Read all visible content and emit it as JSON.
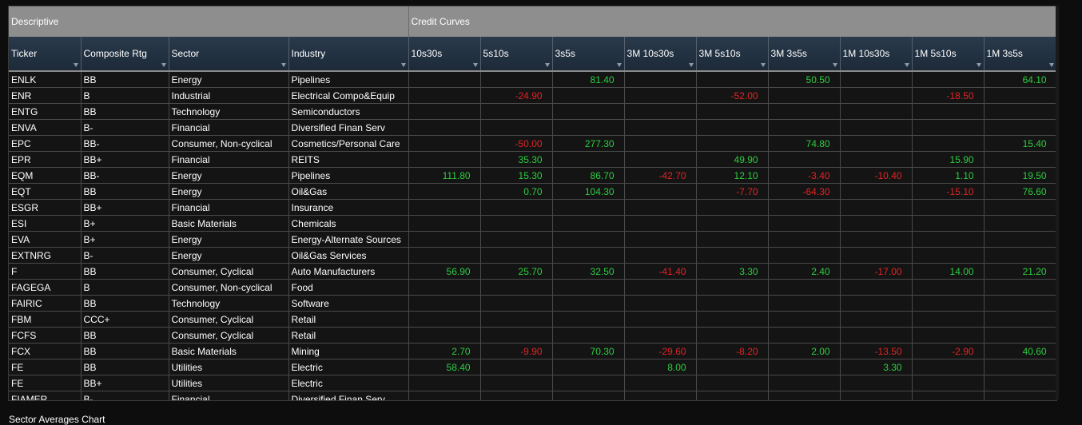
{
  "groups": {
    "descriptive": "Descriptive",
    "credit_curves": "Credit Curves"
  },
  "columns": [
    "Ticker",
    "Composite Rtg",
    "Sector",
    "Industry",
    "10s30s",
    "5s10s",
    "3s5s",
    "3M 10s30s",
    "3M 5s10s",
    "3M 3s5s",
    "1M 10s30s",
    "1M 5s10s",
    "1M 3s5s"
  ],
  "rows": [
    [
      "ENLK",
      "BB",
      "Energy",
      "Pipelines",
      "",
      "",
      "81.40",
      "",
      "",
      "50.50",
      "",
      "",
      "64.10"
    ],
    [
      "ENR",
      "B",
      "Industrial",
      "Electrical Compo&Equip",
      "",
      "-24.90",
      "",
      "",
      "-52.00",
      "",
      "",
      "-18.50",
      ""
    ],
    [
      "ENTG",
      "BB",
      "Technology",
      "Semiconductors",
      "",
      "",
      "",
      "",
      "",
      "",
      "",
      "",
      ""
    ],
    [
      "ENVA",
      "B-",
      "Financial",
      "Diversified Finan Serv",
      "",
      "",
      "",
      "",
      "",
      "",
      "",
      "",
      ""
    ],
    [
      "EPC",
      "BB-",
      "Consumer, Non-cyclical",
      "Cosmetics/Personal Care",
      "",
      "-50.00",
      "277.30",
      "",
      "",
      "74.80",
      "",
      "",
      "15.40"
    ],
    [
      "EPR",
      "BB+",
      "Financial",
      "REITS",
      "",
      "35.30",
      "",
      "",
      "49.90",
      "",
      "",
      "15.90",
      ""
    ],
    [
      "EQM",
      "BB-",
      "Energy",
      "Pipelines",
      "111.80",
      "15.30",
      "86.70",
      "-42.70",
      "12.10",
      "-3.40",
      "-10.40",
      "1.10",
      "19.50"
    ],
    [
      "EQT",
      "BB",
      "Energy",
      "Oil&Gas",
      "",
      "0.70",
      "104.30",
      "",
      "-7.70",
      "-64.30",
      "",
      "-15.10",
      "76.60"
    ],
    [
      "ESGR",
      "BB+",
      "Financial",
      "Insurance",
      "",
      "",
      "",
      "",
      "",
      "",
      "",
      "",
      ""
    ],
    [
      "ESI",
      "B+",
      "Basic Materials",
      "Chemicals",
      "",
      "",
      "",
      "",
      "",
      "",
      "",
      "",
      ""
    ],
    [
      "EVA",
      "B+",
      "Energy",
      "Energy-Alternate Sources",
      "",
      "",
      "",
      "",
      "",
      "",
      "",
      "",
      ""
    ],
    [
      "EXTNRG",
      "B-",
      "Energy",
      "Oil&Gas Services",
      "",
      "",
      "",
      "",
      "",
      "",
      "",
      "",
      ""
    ],
    [
      "F",
      "BB",
      "Consumer, Cyclical",
      "Auto Manufacturers",
      "56.90",
      "25.70",
      "32.50",
      "-41.40",
      "3.30",
      "2.40",
      "-17.00",
      "14.00",
      "21.20"
    ],
    [
      "FAGEGA",
      "B",
      "Consumer, Non-cyclical",
      "Food",
      "",
      "",
      "",
      "",
      "",
      "",
      "",
      "",
      ""
    ],
    [
      "FAIRIC",
      "BB",
      "Technology",
      "Software",
      "",
      "",
      "",
      "",
      "",
      "",
      "",
      "",
      ""
    ],
    [
      "FBM",
      "CCC+",
      "Consumer, Cyclical",
      "Retail",
      "",
      "",
      "",
      "",
      "",
      "",
      "",
      "",
      ""
    ],
    [
      "FCFS",
      "BB",
      "Consumer, Cyclical",
      "Retail",
      "",
      "",
      "",
      "",
      "",
      "",
      "",
      "",
      ""
    ],
    [
      "FCX",
      "BB",
      "Basic Materials",
      "Mining",
      "2.70",
      "-9.90",
      "70.30",
      "-29.60",
      "-8.20",
      "2.00",
      "-13.50",
      "-2.90",
      "40.60"
    ],
    [
      "FE",
      "BB",
      "Utilities",
      "Electric",
      "58.40",
      "",
      "",
      "8.00",
      "",
      "",
      "3.30",
      "",
      ""
    ],
    [
      "FE",
      "BB+",
      "Utilities",
      "Electric",
      "",
      "",
      "",
      "",
      "",
      "",
      "",
      "",
      ""
    ],
    [
      "FIAMER",
      "B-",
      "Financial",
      "Diversified Finan Serv",
      "",
      "",
      "",
      "",
      "",
      "",
      "",
      "",
      ""
    ]
  ],
  "footer_title": "Sector Averages Chart",
  "colors": {
    "positive": "#2ecc40",
    "negative": "#e02424",
    "header": "#1f2d3b",
    "group": "#8e8e8e"
  }
}
